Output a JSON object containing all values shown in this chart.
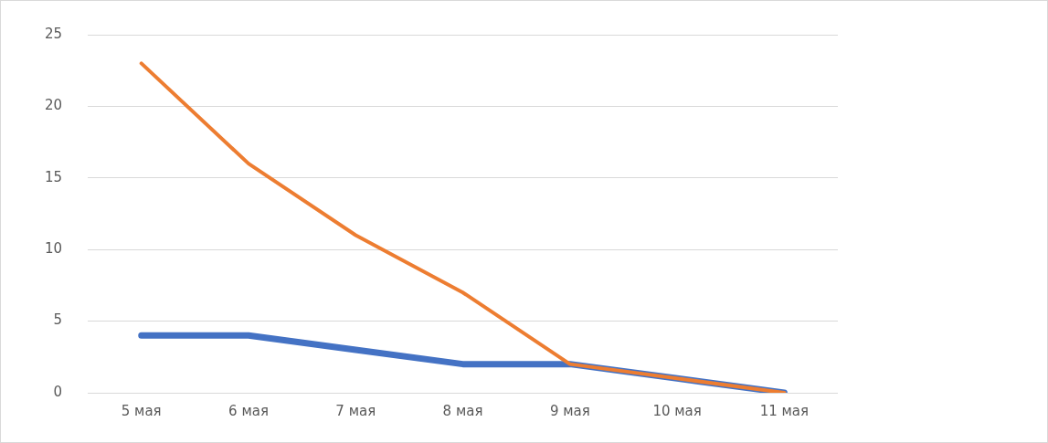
{
  "chart_data": {
    "type": "line",
    "categories": [
      "5 мая",
      "6 мая",
      "7 мая",
      "8 мая",
      "9 мая",
      "10 мая",
      "11 мая"
    ],
    "series": [
      {
        "color": "#4472c4",
        "values": [
          4,
          4,
          3,
          2,
          2,
          1,
          0
        ]
      },
      {
        "color": "#ed7d31",
        "values": [
          23,
          16,
          11,
          7,
          2,
          1,
          0
        ]
      }
    ],
    "ylim": [
      0,
      25
    ],
    "yticks": [
      0,
      5,
      10,
      15,
      20,
      25
    ],
    "grid": "y",
    "marker": "none",
    "line_style": "solid"
  }
}
